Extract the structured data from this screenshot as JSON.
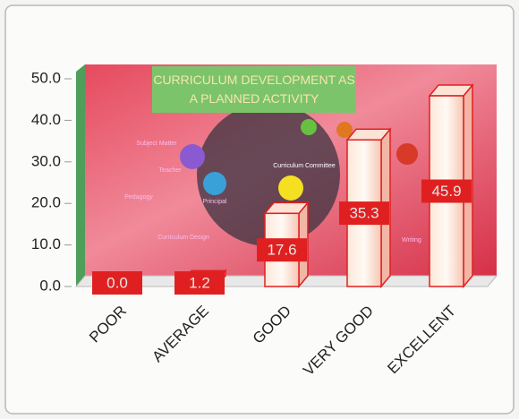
{
  "chart_data": {
    "type": "bar3d",
    "title": "CURRICULUM DEVELOPMENT AS A PLANNED ACTIVITY",
    "categories": [
      "POOR",
      "AVERAGE",
      "GOOD",
      "VERY GOOD",
      "EXCELLENT"
    ],
    "values": [
      0.0,
      1.2,
      17.6,
      35.3,
      45.9
    ],
    "value_labels": [
      "0.0",
      "1.2",
      "17.6",
      "35.3",
      "45.9"
    ],
    "color": "#e02020",
    "ylim": [
      0,
      50
    ],
    "yticks": [
      {
        "value": 0,
        "label": "0.0"
      },
      {
        "value": 10,
        "label": "10.0"
      },
      {
        "value": 20,
        "label": "20.0"
      },
      {
        "value": 30,
        "label": "30.0"
      },
      {
        "value": 40,
        "label": "40.0"
      },
      {
        "value": 50,
        "label": "50.0"
      }
    ],
    "image_labels": [
      "Subject Matter",
      "Teacher",
      "Pedagogy",
      "Principal",
      "Curriculum Design",
      "Curriculum Committee",
      "Writing"
    ]
  }
}
